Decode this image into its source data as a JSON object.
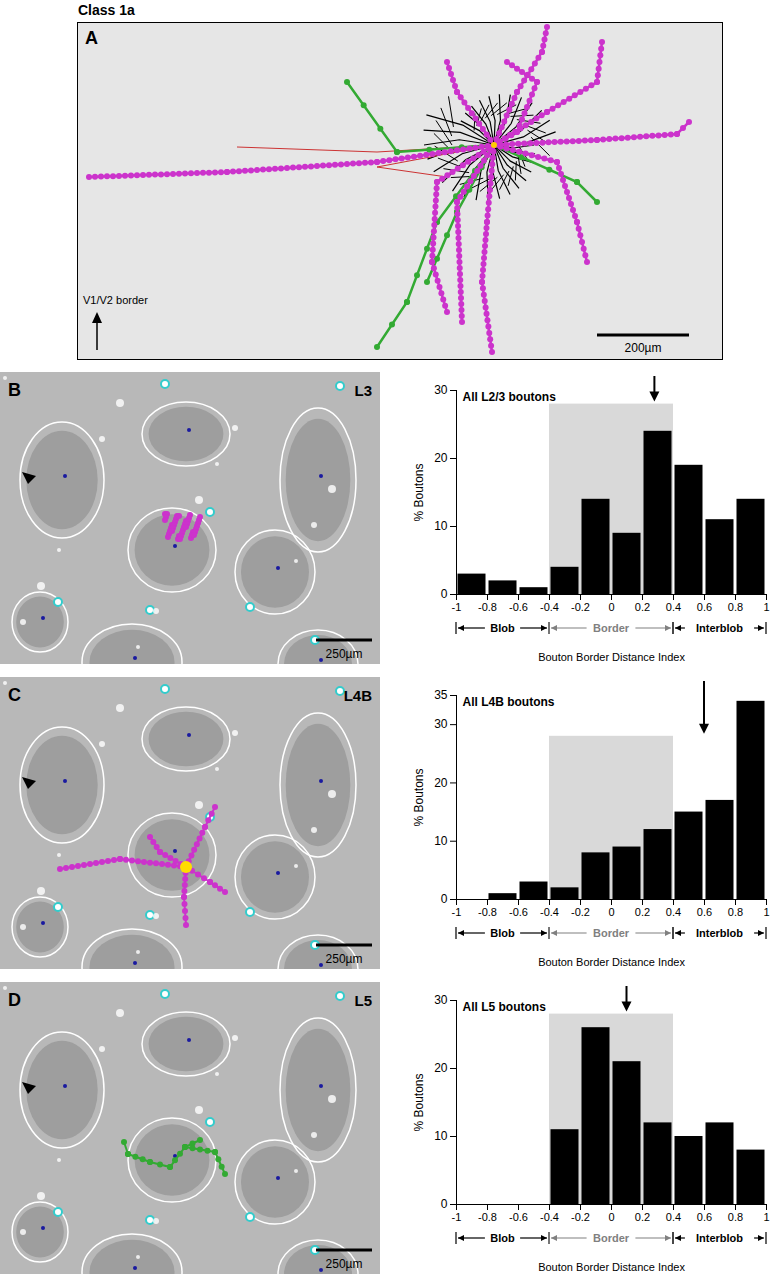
{
  "figure": {
    "title": "Class 1a",
    "panels": [
      {
        "label": "A",
        "annotation": "V1/V2 border",
        "scale_bar": "200µm"
      },
      {
        "label": "B",
        "layer": "L3",
        "scale_bar": "250µm"
      },
      {
        "label": "C",
        "layer": "L4B",
        "scale_bar": "250µm"
      },
      {
        "label": "D",
        "layer": "L5",
        "scale_bar": "250µm"
      }
    ]
  },
  "chart_data": [
    {
      "type": "histogram",
      "title": "All L2/3 boutons",
      "x_label": "Bouton Border Distance Index",
      "y_label": "% Boutons",
      "bins": [
        -1,
        -0.8,
        -0.6,
        -0.4,
        -0.2,
        0,
        0.2,
        0.4,
        0.6,
        0.8,
        1
      ],
      "values": [
        3,
        2,
        1,
        4,
        14,
        9,
        24,
        19,
        11,
        14
      ],
      "color": "#000000",
      "xlim": [
        -1,
        1
      ],
      "xticks": [
        -1,
        -0.8,
        -0.6,
        -0.4,
        -0.2,
        0,
        0.2,
        0.4,
        0.6,
        0.8,
        1
      ],
      "ylim": [
        0,
        30
      ],
      "yticks": [
        0,
        10,
        20,
        30
      ],
      "border_band": [
        -0.4,
        0.4
      ],
      "band_top": 28,
      "mean_arrow": 0.28,
      "regions": [
        {
          "label": "Blob",
          "from": -1,
          "to": -0.4
        },
        {
          "label": "Border",
          "from": -0.4,
          "to": 0.4
        },
        {
          "label": "Interblob",
          "from": 0.4,
          "to": 1
        }
      ]
    },
    {
      "type": "histogram",
      "title": "All L4B boutons",
      "x_label": "Bouton Border Distance Index",
      "y_label": "% Boutons",
      "bins": [
        -1,
        -0.8,
        -0.6,
        -0.4,
        -0.2,
        0,
        0.2,
        0.4,
        0.6,
        0.8,
        1
      ],
      "values": [
        0,
        1,
        3,
        2,
        8,
        9,
        12,
        15,
        17,
        34
      ],
      "color": "#000000",
      "xlim": [
        -1,
        1
      ],
      "xticks": [
        -1,
        -0.8,
        -0.6,
        -0.4,
        -0.2,
        0,
        0.2,
        0.4,
        0.6,
        0.8,
        1
      ],
      "ylim": [
        0,
        35
      ],
      "yticks": [
        0,
        10,
        20,
        30,
        35
      ],
      "border_band": [
        -0.4,
        0.4
      ],
      "band_top": 28,
      "mean_arrow": 0.6,
      "regions": [
        {
          "label": "Blob",
          "from": -1,
          "to": -0.4
        },
        {
          "label": "Border",
          "from": -0.4,
          "to": 0.4
        },
        {
          "label": "Interblob",
          "from": 0.4,
          "to": 1
        }
      ]
    },
    {
      "type": "histogram",
      "title": "All L5 boutons",
      "x_label": "Bouton Border Distance Index",
      "y_label": "% Boutons",
      "bins": [
        -1,
        -0.8,
        -0.6,
        -0.4,
        -0.2,
        0,
        0.2,
        0.4,
        0.6,
        0.8,
        1
      ],
      "values": [
        0,
        0,
        0,
        11,
        26,
        21,
        12,
        10,
        12,
        8
      ],
      "color": "#000000",
      "xlim": [
        -1,
        1
      ],
      "xticks": [
        -1,
        -0.8,
        -0.6,
        -0.4,
        -0.2,
        0,
        0.2,
        0.4,
        0.6,
        0.8,
        1
      ],
      "ylim": [
        0,
        30
      ],
      "yticks": [
        0,
        10,
        20,
        30
      ],
      "border_band": [
        -0.4,
        0.4
      ],
      "band_top": 28,
      "mean_arrow": 0.1,
      "regions": [
        {
          "label": "Blob",
          "from": -1,
          "to": -0.4
        },
        {
          "label": "Border",
          "from": -0.4,
          "to": 0.4
        },
        {
          "label": "Interblob",
          "from": 0.4,
          "to": 1
        }
      ]
    }
  ]
}
